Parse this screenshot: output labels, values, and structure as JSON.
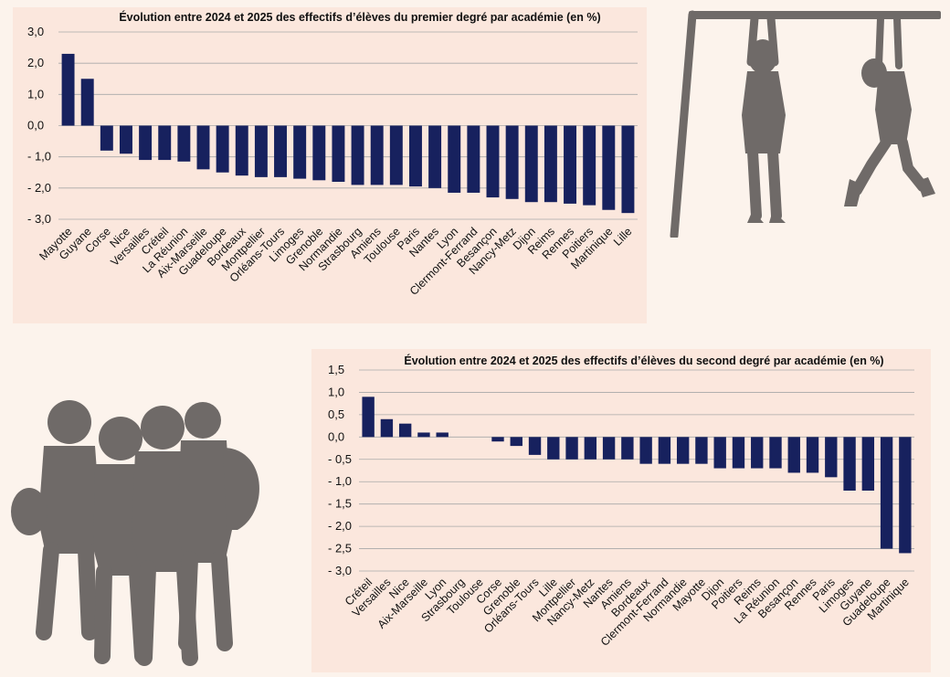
{
  "colors": {
    "bar": "#17215e",
    "grid": "#a8a8a8",
    "panel_bg": "#fbe7dd",
    "page_bg": "#fcf3ec",
    "silhouette": "#6f6a68"
  },
  "illustrations": [
    "children-hanging-on-bar-silhouette",
    "teenagers-group-silhouette"
  ],
  "chart_data": [
    {
      "type": "bar",
      "title": "Évolution entre 2024 et 2025 des effectifs d’élèves du premier degré par académie (en %)",
      "xlabel": "",
      "ylabel": "",
      "ylim": [
        -3.0,
        3.0
      ],
      "yticks": [
        3.0,
        2.0,
        1.0,
        0.0,
        -1.0,
        -2.0,
        -3.0
      ],
      "ytick_labels": [
        "3,0",
        "2,0",
        "1,0",
        "0,0",
        "- 1,0",
        "- 2,0",
        "- 3,0"
      ],
      "grid": true,
      "legend": "none",
      "categories": [
        "Mayotte",
        "Guyane",
        "Corse",
        "Nice",
        "Versailles",
        "Créteil",
        "La Réunion",
        "Aix-Marseille",
        "Guadeloupe",
        "Bordeaux",
        "Montpellier",
        "Orléans-Tours",
        "Limoges",
        "Grenoble",
        "Normandie",
        "Strasbourg",
        "Amiens",
        "Toulouse",
        "Paris",
        "Nantes",
        "Lyon",
        "Clermont-Ferrand",
        "Besançon",
        "Nancy-Metz",
        "Dijon",
        "Reims",
        "Rennes",
        "Poitiers",
        "Martinique",
        "Lille"
      ],
      "values": [
        2.3,
        1.5,
        -0.8,
        -0.9,
        -1.1,
        -1.1,
        -1.15,
        -1.4,
        -1.5,
        -1.6,
        -1.65,
        -1.65,
        -1.7,
        -1.75,
        -1.8,
        -1.9,
        -1.9,
        -1.9,
        -1.95,
        -2.0,
        -2.15,
        -2.15,
        -2.3,
        -2.35,
        -2.45,
        -2.45,
        -2.5,
        -2.55,
        -2.7,
        -2.8
      ]
    },
    {
      "type": "bar",
      "title": "Évolution entre 2024 et 2025 des effectifs d’élèves du second degré par académie (en %)",
      "xlabel": "",
      "ylabel": "",
      "ylim": [
        -3.0,
        1.5
      ],
      "yticks": [
        1.5,
        1.0,
        0.5,
        0.0,
        -0.5,
        -1.0,
        -1.5,
        -2.0,
        -2.5,
        -3.0
      ],
      "ytick_labels": [
        "1,5",
        "1,0",
        "0,5",
        "0,0",
        "- 0,5",
        "- 1,0",
        "- 1,5",
        "- 2,0",
        "- 2,5",
        "- 3,0"
      ],
      "grid": true,
      "legend": "none",
      "categories": [
        "Créteil",
        "Versailles",
        "Nice",
        "Aix-Marseille",
        "Lyon",
        "Strasbourg",
        "Toulouse",
        "Corse",
        "Grenoble",
        "Orléans-Tours",
        "Lille",
        "Montpellier",
        "Nancy-Metz",
        "Nantes",
        "Amiens",
        "Bordeaux",
        "Clermont-Ferrand",
        "Normandie",
        "Mayotte",
        "Dijon",
        "Poitiers",
        "Reims",
        "La Réunion",
        "Besançon",
        "Rennes",
        "Paris",
        "Limoges",
        "Guyane",
        "Guadeloupe",
        "Martinique"
      ],
      "values": [
        0.9,
        0.4,
        0.3,
        0.1,
        0.1,
        0.0,
        0.0,
        -0.1,
        -0.2,
        -0.4,
        -0.5,
        -0.5,
        -0.5,
        -0.5,
        -0.5,
        -0.6,
        -0.6,
        -0.6,
        -0.6,
        -0.7,
        -0.7,
        -0.7,
        -0.7,
        -0.8,
        -0.8,
        -0.9,
        -1.2,
        -1.2,
        -2.5,
        -2.6
      ]
    }
  ]
}
